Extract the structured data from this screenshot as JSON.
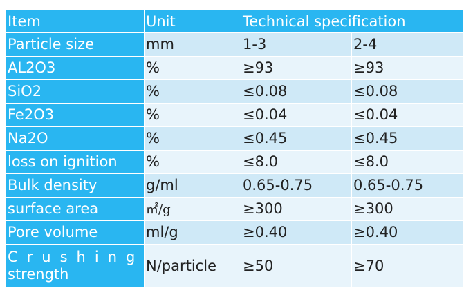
{
  "table": {
    "headers": [
      "Item",
      "Unit",
      "Technical specification"
    ],
    "rows": [
      {
        "item": "Particle size",
        "unit": "mm",
        "spec1": "1-3",
        "spec2": "2-4"
      },
      {
        "item": "AL2O3",
        "unit": "%",
        "spec1": "≥93",
        "spec2": "≥93"
      },
      {
        "item": "SiO2",
        "unit": "%",
        "spec1": "≤0.08",
        "spec2": "≤0.08"
      },
      {
        "item": "Fe2O3",
        "unit": "%",
        "spec1": "≤0.04",
        "spec2": "≤0.04"
      },
      {
        "item": "Na2O",
        "unit": "%",
        "spec1": "≤0.45",
        "spec2": "≤0.45"
      },
      {
        "item": "loss on ignition",
        "unit": "%",
        "spec1": "≤8.0",
        "spec2": "≤8.0"
      },
      {
        "item": "Bulk density",
        "unit": "g/ml",
        "spec1": "0.65-0.75",
        "spec2": "0.65-0.75"
      },
      {
        "item": "surface area",
        "unit": "㎡/g",
        "spec1": "≥300",
        "spec2": "≥300"
      },
      {
        "item": "Pore volume",
        "unit": "ml/g",
        "spec1": "≥0.40",
        "spec2": "≥0.40"
      },
      {
        "item_line1": "Crushing",
        "item_line2": "strength",
        "unit": "N/particle",
        "spec1": "≥50",
        "spec2": "≥70"
      }
    ]
  }
}
